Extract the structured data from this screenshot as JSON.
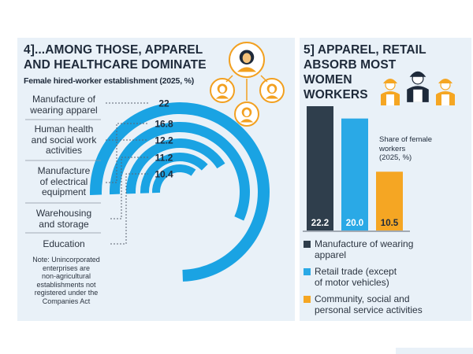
{
  "colors": {
    "panel_bg": "#e9f1f8",
    "arc_blue": "#1aa3e3",
    "dark_bar": "#2f3e4c",
    "light_blue_bar": "#2aa9e6",
    "orange_bar": "#f5a623",
    "text_dark": "#1e2a3a"
  },
  "left": {
    "title_lines": [
      "4]...AMONG THOSE, APPAREL",
      "AND HEALTHCARE DOMINATE"
    ],
    "subtitle": "Female hired-worker establishment (2025, %)",
    "note_lines": [
      "Note: Unincorporated",
      "enterprises are",
      "non-agricultural",
      "establishments not",
      "registered under the",
      "Companies Act"
    ],
    "icons": [
      "woman-worker-icon",
      "woman-worker-icon",
      "woman-worker-icon",
      "woman-worker-icon"
    ]
  },
  "right": {
    "title_lines": [
      "5] APPAREL, RETAIL",
      "ABSORB MOST",
      "WOMEN",
      "WORKERS"
    ],
    "share_label_lines": [
      "Share of female",
      "workers",
      "(2025, %)"
    ],
    "legend": [
      {
        "lines": [
          "Manufacture of wearing",
          "apparel"
        ],
        "color": "#2f3e4c"
      },
      {
        "lines": [
          "Retail trade (except",
          "of motor vehicles)"
        ],
        "color": "#2aa9e6"
      },
      {
        "lines": [
          "Community, social and",
          "personal service activities"
        ],
        "color": "#f5a623"
      }
    ],
    "icons": [
      "helmet-worker-icon",
      "helmet-worker-icon",
      "helmet-worker-icon"
    ]
  },
  "chart_data": [
    {
      "type": "bar",
      "subtype": "radial",
      "title": "4]...AMONG THOSE, APPAREL AND HEALTHCARE DOMINATE",
      "subtitle": "Female hired-worker establishment (2025, %)",
      "categories": [
        "Manufacture of wearing apparel",
        "Human health and social work activities",
        "Manufacture of electrical equipment",
        "Warehousing and storage",
        "Education"
      ],
      "category_label_lines": [
        [
          "Manufacture of",
          "wearing apparel"
        ],
        [
          "Human health",
          "and social work",
          "activities"
        ],
        [
          "Manufacture",
          "of electrical",
          "equipment"
        ],
        [
          "Warehousing",
          "and storage"
        ],
        [
          "Education"
        ]
      ],
      "values": [
        22,
        16.8,
        12.2,
        11.2,
        10.4
      ],
      "value_labels": [
        "22",
        "16.8",
        "12.2",
        "11.2",
        "10.4"
      ]
    },
    {
      "type": "bar",
      "title": "5] APPAREL, RETAIL ABSORB MOST WOMEN WORKERS",
      "ylabel": "Share of female workers (2025, %)",
      "categories": [
        "Manufacture of wearing apparel",
        "Retail trade (except of motor vehicles)",
        "Community, social and personal service activities"
      ],
      "values": [
        22.2,
        20.0,
        10.5
      ],
      "value_labels": [
        "22.2",
        "20.0",
        "10.5"
      ],
      "colors": [
        "#2f3e4c",
        "#2aa9e6",
        "#f5a623"
      ],
      "legend_position": "bottom"
    }
  ]
}
